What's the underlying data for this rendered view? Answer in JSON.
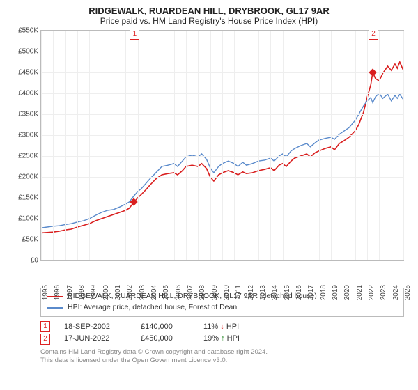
{
  "title": "RIDGEWALK, RUARDEAN HILL, DRYBROOK, GL17 9AR",
  "subtitle": "Price paid vs. HM Land Registry's House Price Index (HPI)",
  "chart": {
    "type": "line",
    "x_range": [
      1995,
      2025
    ],
    "y_range": [
      0,
      550000
    ],
    "y_ticks": [
      0,
      50000,
      100000,
      150000,
      200000,
      250000,
      300000,
      350000,
      400000,
      450000,
      500000,
      550000
    ],
    "y_tick_labels": [
      "£0",
      "£50K",
      "£100K",
      "£150K",
      "£200K",
      "£250K",
      "£300K",
      "£350K",
      "£400K",
      "£450K",
      "£500K",
      "£550K"
    ],
    "x_ticks": [
      1995,
      1996,
      1997,
      1998,
      1999,
      2000,
      2001,
      2002,
      2003,
      2004,
      2005,
      2006,
      2007,
      2008,
      2009,
      2010,
      2011,
      2012,
      2013,
      2014,
      2015,
      2016,
      2017,
      2018,
      2019,
      2020,
      2021,
      2022,
      2023,
      2024,
      2025
    ],
    "grid_color": "#eeeeee",
    "border_color": "#bbbbbb",
    "background_color": "#ffffff",
    "series": [
      {
        "name": "RIDGEWALK, RUARDEAN HILL, DRYBROOK, GL17 9AR (detached house)",
        "color": "#d91e1e",
        "width": 1.6,
        "data": [
          [
            1995,
            66000
          ],
          [
            1995.5,
            67000
          ],
          [
            1996,
            68000
          ],
          [
            1996.5,
            70000
          ],
          [
            1997,
            73000
          ],
          [
            1997.5,
            75000
          ],
          [
            1998,
            80000
          ],
          [
            1998.5,
            84000
          ],
          [
            1999,
            88000
          ],
          [
            1999.5,
            95000
          ],
          [
            2000,
            100000
          ],
          [
            2000.5,
            105000
          ],
          [
            2001,
            110000
          ],
          [
            2001.5,
            115000
          ],
          [
            2002,
            120000
          ],
          [
            2002.3,
            125000
          ],
          [
            2002.7,
            140000
          ],
          [
            2003,
            150000
          ],
          [
            2003.3,
            158000
          ],
          [
            2003.7,
            170000
          ],
          [
            2004,
            180000
          ],
          [
            2004.5,
            195000
          ],
          [
            2005,
            205000
          ],
          [
            2005.5,
            208000
          ],
          [
            2006,
            210000
          ],
          [
            2006.3,
            205000
          ],
          [
            2006.7,
            215000
          ],
          [
            2007,
            225000
          ],
          [
            2007.5,
            228000
          ],
          [
            2008,
            225000
          ],
          [
            2008.3,
            232000
          ],
          [
            2008.7,
            220000
          ],
          [
            2009,
            200000
          ],
          [
            2009.3,
            190000
          ],
          [
            2009.7,
            205000
          ],
          [
            2010,
            210000
          ],
          [
            2010.5,
            215000
          ],
          [
            2011,
            210000
          ],
          [
            2011.3,
            205000
          ],
          [
            2011.7,
            212000
          ],
          [
            2012,
            208000
          ],
          [
            2012.5,
            210000
          ],
          [
            2013,
            215000
          ],
          [
            2013.5,
            218000
          ],
          [
            2014,
            222000
          ],
          [
            2014.3,
            215000
          ],
          [
            2014.7,
            228000
          ],
          [
            2015,
            232000
          ],
          [
            2015.3,
            225000
          ],
          [
            2015.7,
            238000
          ],
          [
            2016,
            245000
          ],
          [
            2016.5,
            250000
          ],
          [
            2017,
            255000
          ],
          [
            2017.3,
            248000
          ],
          [
            2017.7,
            258000
          ],
          [
            2018,
            262000
          ],
          [
            2018.5,
            268000
          ],
          [
            2019,
            272000
          ],
          [
            2019.3,
            265000
          ],
          [
            2019.7,
            280000
          ],
          [
            2020,
            285000
          ],
          [
            2020.5,
            295000
          ],
          [
            2021,
            310000
          ],
          [
            2021.3,
            325000
          ],
          [
            2021.7,
            355000
          ],
          [
            2022,
            390000
          ],
          [
            2022.3,
            420000
          ],
          [
            2022.46,
            450000
          ],
          [
            2022.7,
            435000
          ],
          [
            2023,
            430000
          ],
          [
            2023.3,
            448000
          ],
          [
            2023.7,
            465000
          ],
          [
            2024,
            455000
          ],
          [
            2024.3,
            470000
          ],
          [
            2024.5,
            460000
          ],
          [
            2024.7,
            475000
          ],
          [
            2025,
            455000
          ]
        ]
      },
      {
        "name": "HPI: Average price, detached house, Forest of Dean",
        "color": "#5a8acb",
        "width": 1.4,
        "data": [
          [
            1995,
            78000
          ],
          [
            1995.5,
            80000
          ],
          [
            1996,
            82000
          ],
          [
            1996.5,
            83000
          ],
          [
            1997,
            86000
          ],
          [
            1997.5,
            88000
          ],
          [
            1998,
            92000
          ],
          [
            1998.5,
            95000
          ],
          [
            1999,
            100000
          ],
          [
            1999.5,
            108000
          ],
          [
            2000,
            115000
          ],
          [
            2000.5,
            120000
          ],
          [
            2001,
            122000
          ],
          [
            2001.5,
            128000
          ],
          [
            2002,
            135000
          ],
          [
            2002.3,
            140000
          ],
          [
            2002.7,
            155000
          ],
          [
            2003,
            165000
          ],
          [
            2003.3,
            172000
          ],
          [
            2003.7,
            185000
          ],
          [
            2004,
            195000
          ],
          [
            2004.5,
            210000
          ],
          [
            2005,
            225000
          ],
          [
            2005.5,
            228000
          ],
          [
            2006,
            232000
          ],
          [
            2006.3,
            225000
          ],
          [
            2006.7,
            238000
          ],
          [
            2007,
            248000
          ],
          [
            2007.5,
            252000
          ],
          [
            2008,
            248000
          ],
          [
            2008.3,
            255000
          ],
          [
            2008.7,
            242000
          ],
          [
            2009,
            222000
          ],
          [
            2009.3,
            210000
          ],
          [
            2009.7,
            225000
          ],
          [
            2010,
            232000
          ],
          [
            2010.5,
            238000
          ],
          [
            2011,
            232000
          ],
          [
            2011.3,
            225000
          ],
          [
            2011.7,
            235000
          ],
          [
            2012,
            228000
          ],
          [
            2012.5,
            232000
          ],
          [
            2013,
            238000
          ],
          [
            2013.5,
            240000
          ],
          [
            2014,
            245000
          ],
          [
            2014.3,
            238000
          ],
          [
            2014.7,
            250000
          ],
          [
            2015,
            255000
          ],
          [
            2015.3,
            248000
          ],
          [
            2015.7,
            262000
          ],
          [
            2016,
            268000
          ],
          [
            2016.5,
            275000
          ],
          [
            2017,
            280000
          ],
          [
            2017.3,
            272000
          ],
          [
            2017.7,
            282000
          ],
          [
            2018,
            288000
          ],
          [
            2018.5,
            292000
          ],
          [
            2019,
            295000
          ],
          [
            2019.3,
            290000
          ],
          [
            2019.7,
            302000
          ],
          [
            2020,
            308000
          ],
          [
            2020.5,
            318000
          ],
          [
            2021,
            335000
          ],
          [
            2021.3,
            350000
          ],
          [
            2021.7,
            370000
          ],
          [
            2022,
            382000
          ],
          [
            2022.3,
            390000
          ],
          [
            2022.46,
            378000
          ],
          [
            2022.7,
            392000
          ],
          [
            2023,
            400000
          ],
          [
            2023.3,
            388000
          ],
          [
            2023.7,
            398000
          ],
          [
            2024,
            382000
          ],
          [
            2024.3,
            395000
          ],
          [
            2024.5,
            388000
          ],
          [
            2024.7,
            398000
          ],
          [
            2025,
            385000
          ]
        ]
      }
    ],
    "markers": [
      {
        "id": "1",
        "x": 2002.7,
        "y": 140000,
        "color": "#d91e1e"
      },
      {
        "id": "2",
        "x": 2022.46,
        "y": 450000,
        "color": "#d91e1e"
      }
    ],
    "marker_label_top_offset": -3
  },
  "legend": {
    "items": [
      {
        "color": "#d91e1e",
        "label": "RIDGEWALK, RUARDEAN HILL, DRYBROOK, GL17 9AR (detached house)"
      },
      {
        "color": "#5a8acb",
        "label": "HPI: Average price, detached house, Forest of Dean"
      }
    ]
  },
  "transactions": [
    {
      "id": "1",
      "date": "18-SEP-2002",
      "price": "£140,000",
      "pct": "11%",
      "arrow": "↓",
      "arrow_color": "#d91e1e",
      "suffix": "HPI"
    },
    {
      "id": "2",
      "date": "17-JUN-2022",
      "price": "£450,000",
      "pct": "19%",
      "arrow": "↑",
      "arrow_color": "#2a8a2a",
      "suffix": "HPI"
    }
  ],
  "footer": {
    "line1": "Contains HM Land Registry data © Crown copyright and database right 2024.",
    "line2": "This data is licensed under the Open Government Licence v3.0."
  }
}
